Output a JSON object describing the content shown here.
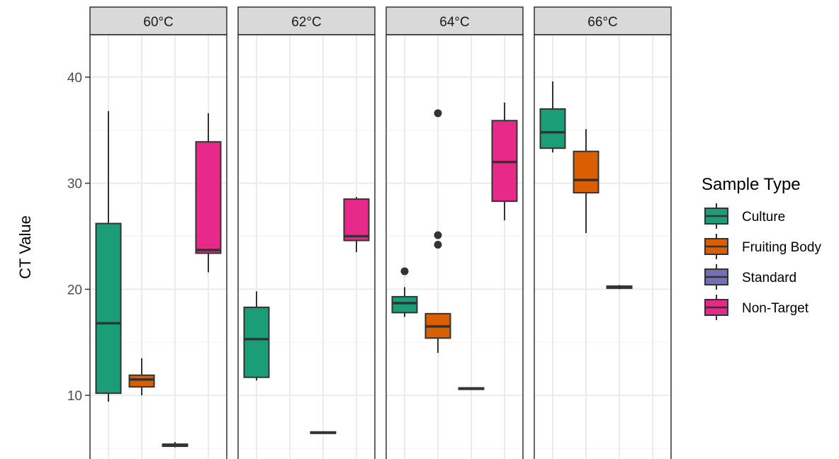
{
  "chart_data": {
    "type": "boxplot",
    "ylabel": "CT Value",
    "xlabel": "",
    "y_ticks": [
      10,
      20,
      30,
      40
    ],
    "ylim": [
      4,
      44
    ],
    "grid": true,
    "facets": [
      "60°C",
      "62°C",
      "64°C",
      "66°C"
    ],
    "legend": {
      "title": "Sample Type",
      "placement": "right",
      "entries": [
        "Culture",
        "Fruiting Body",
        "Standard",
        "Non-Target"
      ]
    },
    "colors": {
      "Culture": "#1b9e77",
      "Fruiting Body": "#d95f02",
      "Standard": "#7570b3",
      "Non-Target": "#e7298a"
    },
    "boxes": [
      {
        "facet": "60°C",
        "type": "Culture",
        "min": 9.4,
        "q1": 10.2,
        "median": 16.8,
        "q3": 26.2,
        "max": 36.8,
        "outliers": []
      },
      {
        "facet": "60°C",
        "type": "Fruiting Body",
        "min": 10.0,
        "q1": 10.8,
        "median": 11.5,
        "q3": 11.9,
        "max": 13.5,
        "outliers": []
      },
      {
        "facet": "60°C",
        "type": "Standard",
        "min": 5.1,
        "q1": 5.2,
        "median": 5.3,
        "q3": 5.4,
        "max": 5.6,
        "outliers": []
      },
      {
        "facet": "60°C",
        "type": "Non-Target",
        "min": 21.6,
        "q1": 23.4,
        "median": 23.7,
        "q3": 33.9,
        "max": 36.6,
        "outliers": []
      },
      {
        "facet": "62°C",
        "type": "Culture",
        "min": 11.4,
        "q1": 11.7,
        "median": 15.3,
        "q3": 18.3,
        "max": 19.8,
        "outliers": []
      },
      {
        "facet": "62°C",
        "type": "Standard",
        "min": 6.4,
        "q1": 6.45,
        "median": 6.5,
        "q3": 6.55,
        "max": 6.6,
        "outliers": []
      },
      {
        "facet": "62°C",
        "type": "Non-Target",
        "min": 23.5,
        "q1": 24.6,
        "median": 25.0,
        "q3": 28.5,
        "max": 28.7,
        "outliers": []
      },
      {
        "facet": "64°C",
        "type": "Culture",
        "min": 17.4,
        "q1": 17.8,
        "median": 18.7,
        "q3": 19.3,
        "max": 20.2,
        "outliers": [
          21.7
        ]
      },
      {
        "facet": "64°C",
        "type": "Fruiting Body",
        "min": 14.0,
        "q1": 15.4,
        "median": 16.5,
        "q3": 17.7,
        "max": 17.7,
        "outliers": [
          24.2,
          25.1,
          36.6
        ]
      },
      {
        "facet": "64°C",
        "type": "Standard",
        "min": 10.55,
        "q1": 10.6,
        "median": 10.65,
        "q3": 10.7,
        "max": 10.75,
        "outliers": []
      },
      {
        "facet": "64°C",
        "type": "Non-Target",
        "min": 26.5,
        "q1": 28.3,
        "median": 32.0,
        "q3": 35.9,
        "max": 37.6,
        "outliers": []
      },
      {
        "facet": "66°C",
        "type": "Culture",
        "min": 32.9,
        "q1": 33.3,
        "median": 34.8,
        "q3": 37.0,
        "max": 39.6,
        "outliers": []
      },
      {
        "facet": "66°C",
        "type": "Fruiting Body",
        "min": 25.3,
        "q1": 29.1,
        "median": 30.3,
        "q3": 33.0,
        "max": 35.1,
        "outliers": []
      },
      {
        "facet": "66°C",
        "type": "Standard",
        "min": 20.0,
        "q1": 20.1,
        "median": 20.2,
        "q3": 20.3,
        "max": 20.4,
        "outliers": []
      }
    ]
  }
}
